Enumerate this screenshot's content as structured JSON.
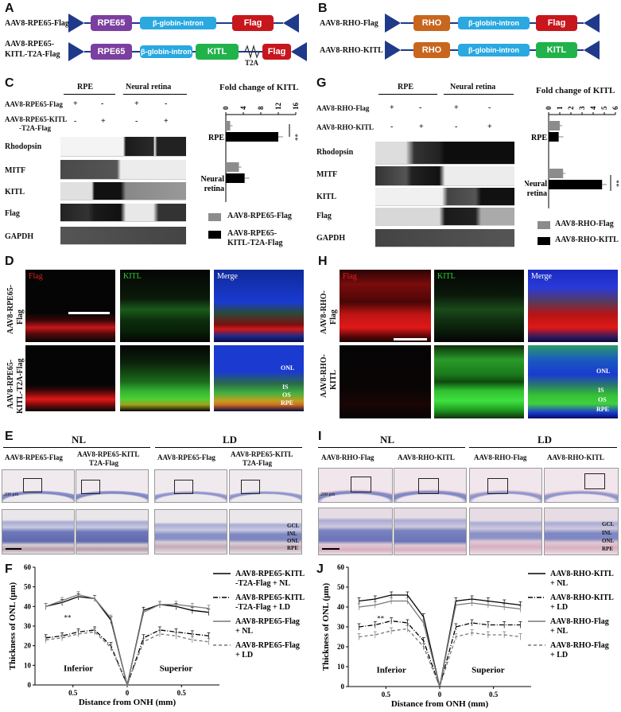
{
  "panels": {
    "A": "A",
    "B": "B",
    "C": "C",
    "G": "G",
    "D": "D",
    "H": "H",
    "E": "E",
    "I": "I",
    "F": "F",
    "J": "J"
  },
  "constructs": {
    "a1_name": "AAV8-RPE65-Flag",
    "a2_name_line1": "AAV8-RPE65-",
    "a2_name_line2": "KITL-T2A-Flag",
    "b1_name": "AAV8-RHO-Flag",
    "b2_name": "AAV8-RHO-KITL",
    "rpe65": "RPE65",
    "rho": "RHO",
    "intron": "β-globin-intron",
    "kitl": "KITL",
    "flag": "Flag",
    "t2a": "T2A",
    "colors": {
      "rpe65": "#7b3fa0",
      "rho": "#c8661e",
      "intron": "#2aa8e0",
      "kitl": "#21b34a",
      "flag": "#c8161d",
      "itr": "#1f3a8a"
    }
  },
  "western_c": {
    "col_rpe": "RPE",
    "col_nr": "Neural retina",
    "row1_label": "AAV8-RPE65-Flag",
    "row2_label_line1": "AAV8-RPE65-KITL",
    "row2_label_line2": "-T2A-Flag",
    "row1_signs": [
      "+",
      "-",
      "+",
      "-"
    ],
    "row2_signs": [
      "-",
      "+",
      "-",
      "+"
    ],
    "bands": [
      "Rhodopsin",
      "MITF",
      "KITL",
      "Flag",
      "GAPDH"
    ]
  },
  "western_g": {
    "col_rpe": "RPE",
    "col_nr": "Neural retina",
    "row1_label": "AAV8-RHO-Flag",
    "row2_label": "AAV8-RHO-KITL",
    "row1_signs": [
      "+",
      "-",
      "+",
      "-"
    ],
    "row2_signs": [
      "-",
      "+",
      "-",
      "+"
    ],
    "bands": [
      "Rhodopsin",
      "MITF",
      "KITL",
      "Flag",
      "GAPDH"
    ]
  },
  "chart_c": {
    "title": "Fold change of KITL",
    "ticks": [
      "0",
      "4",
      "8",
      "12",
      "16"
    ],
    "groups": [
      "RPE",
      "Neural retina"
    ],
    "sig": "**",
    "legend": [
      "AAV8-RPE65-Flag",
      "AAV8-RPE65-KITL-T2A-Flag"
    ],
    "legend2_line1": "AAV8-RPE65-",
    "legend2_line2": "KITL-T2A-Flag"
  },
  "chart_g": {
    "title": "Fold change of KITL",
    "ticks": [
      "0",
      "1",
      "2",
      "3",
      "4",
      "5",
      "6"
    ],
    "groups": [
      "RPE",
      "Neural retina"
    ],
    "sig": "**",
    "legend": [
      "AAV8-RHO-Flag",
      "AAV8-RHO-KITL"
    ]
  },
  "fluor_d": {
    "headers": [
      "Flag",
      "KITL",
      "Merge"
    ],
    "row1_line1": "AAV8-RPE65-",
    "row1_line2": "Flag",
    "row2_line1": "AAV8-RPE65-",
    "row2_line2": "KITL-T2A-Flag",
    "layers": [
      "ONL",
      "IS",
      "OS",
      "RPE"
    ]
  },
  "fluor_h": {
    "headers": [
      "Flag",
      "KITL",
      "Merge"
    ],
    "row1_line1": "AAV8-RHO-",
    "row1_line2": "Flag",
    "row2_line1": "AAV8-RHO-",
    "row2_line2": "KITL",
    "layers": [
      "ONL",
      "IS",
      "OS",
      "RPE"
    ]
  },
  "histo_e": {
    "nl": "NL",
    "ld": "LD",
    "labels": [
      "AAV8-RPE65-Flag",
      "AAV8-RPE65-KITL",
      "AAV8-RPE65-Flag",
      "AAV8-RPE65-KITL"
    ],
    "labels2": [
      "",
      "T2A-Flag",
      "",
      "T2A-Flag"
    ],
    "scale": "200 μm",
    "layers": [
      "GCL",
      "INL",
      "ONL",
      "RPE"
    ]
  },
  "histo_i": {
    "nl": "NL",
    "ld": "LD",
    "labels": [
      "AAV8-RHO-Flag",
      "AAV8-RHO-KITL",
      "AAV8-RHO-Flag",
      "AAV8-RHO-KITL"
    ],
    "scale": "200 μm",
    "layers": [
      "GCL",
      "INL",
      "ONL",
      "RPE"
    ]
  },
  "chart_data": [
    {
      "type": "bar",
      "panel": "C",
      "title": "Fold change of KITL",
      "categories": [
        "RPE",
        "Neural retina"
      ],
      "series": [
        {
          "name": "AAV8-RPE65-Flag",
          "values": [
            1.0,
            3.0
          ],
          "color": "#8c8c8c"
        },
        {
          "name": "AAV8-RPE65-KITL-T2A-Flag",
          "values": [
            12.0,
            4.3
          ],
          "color": "#000000"
        }
      ],
      "xlim": [
        0,
        16
      ]
    },
    {
      "type": "bar",
      "panel": "G",
      "title": "Fold change of KITL",
      "categories": [
        "RPE",
        "Neural retina"
      ],
      "series": [
        {
          "name": "AAV8-RHO-Flag",
          "values": [
            1.0,
            1.3
          ],
          "color": "#8c8c8c"
        },
        {
          "name": "AAV8-RHO-KITL",
          "values": [
            0.9,
            4.8
          ],
          "color": "#000000"
        }
      ],
      "xlim": [
        0,
        6
      ]
    },
    {
      "type": "line",
      "panel": "F",
      "xlabel": "Distance from ONH (mm)",
      "ylabel": "Thickness of ONL (μm)",
      "ylim": [
        0,
        60
      ],
      "yticks": [
        "0",
        "10",
        "20",
        "30",
        "40",
        "50",
        "60"
      ],
      "xticks": [
        "0.5",
        "0",
        "0.5"
      ],
      "region_labels": [
        "Inferior",
        "Superior"
      ],
      "sig": "**",
      "x": [
        -0.75,
        -0.6,
        -0.45,
        -0.3,
        -0.15,
        0,
        0.15,
        0.3,
        0.45,
        0.6,
        0.75
      ],
      "series": [
        {
          "name": "AAV8-RPE65-KITL -T2A-Flag + NL",
          "style": "solid",
          "values": [
            40,
            42,
            45,
            44,
            33,
            0,
            38,
            41,
            40,
            38,
            37
          ]
        },
        {
          "name": "AAV8-RPE65-KITL -T2A-Flag + LD",
          "style": "dashdot",
          "values": [
            24,
            25,
            27,
            28,
            20,
            0,
            24,
            28,
            27,
            26,
            25
          ]
        },
        {
          "name": "AAV8-RPE65-Flag + NL",
          "style": "gray",
          "values": [
            40,
            43,
            46,
            44,
            34,
            0,
            37,
            41,
            41,
            40,
            39
          ]
        },
        {
          "name": "AAV8-RPE65-Flag + LD",
          "style": "dashgray",
          "values": [
            23,
            24,
            26,
            27,
            19,
            0,
            22,
            26,
            25,
            23,
            22
          ]
        }
      ],
      "legend": [
        [
          "AAV8-RPE65-KITL",
          "-T2A-Flag + NL"
        ],
        [
          "AAV8-RPE65-KITL",
          "-T2A-Flag + LD"
        ],
        [
          "AAV8-RPE65-Flag",
          "+ NL"
        ],
        [
          "AAV8-RPE65-Flag",
          "+ LD"
        ]
      ]
    },
    {
      "type": "line",
      "panel": "J",
      "xlabel": "Distance from ONH (mm)",
      "ylabel": "Thickness of ONL (μm)",
      "ylim": [
        0,
        60
      ],
      "yticks": [
        "0",
        "10",
        "20",
        "30",
        "40",
        "50",
        "60"
      ],
      "xticks": [
        "0.5",
        "0",
        "0.5"
      ],
      "region_labels": [
        "Inferior",
        "Superior"
      ],
      "sig": "**",
      "x": [
        -0.75,
        -0.6,
        -0.45,
        -0.3,
        -0.15,
        0,
        0.15,
        0.3,
        0.45,
        0.6,
        0.75
      ],
      "series": [
        {
          "name": "AAV8-RHO-KITL + NL",
          "style": "solid",
          "values": [
            43,
            44,
            46,
            46,
            35,
            0,
            43,
            44,
            43,
            42,
            41
          ]
        },
        {
          "name": "AAV8-RHO-KITL + LD",
          "style": "dashdot",
          "values": [
            30,
            31,
            33,
            32,
            23,
            0,
            30,
            32,
            31,
            31,
            31
          ]
        },
        {
          "name": "AAV8-RHO-Flag + NL",
          "style": "gray",
          "values": [
            40,
            41,
            43,
            43,
            32,
            0,
            41,
            42,
            41,
            40,
            39
          ]
        },
        {
          "name": "AAV8-RHO-Flag + LD",
          "style": "dashgray",
          "values": [
            25,
            26,
            28,
            29,
            20,
            0,
            25,
            27,
            26,
            26,
            25
          ]
        }
      ],
      "legend": [
        [
          "AAV8-RHO-KITL",
          "+ NL"
        ],
        [
          "AAV8-RHO-KITL",
          "+ LD"
        ],
        [
          "AAV8-RHO-Flag",
          "+ NL"
        ],
        [
          "AAV8-RHO-Flag",
          "+ LD"
        ]
      ]
    }
  ]
}
